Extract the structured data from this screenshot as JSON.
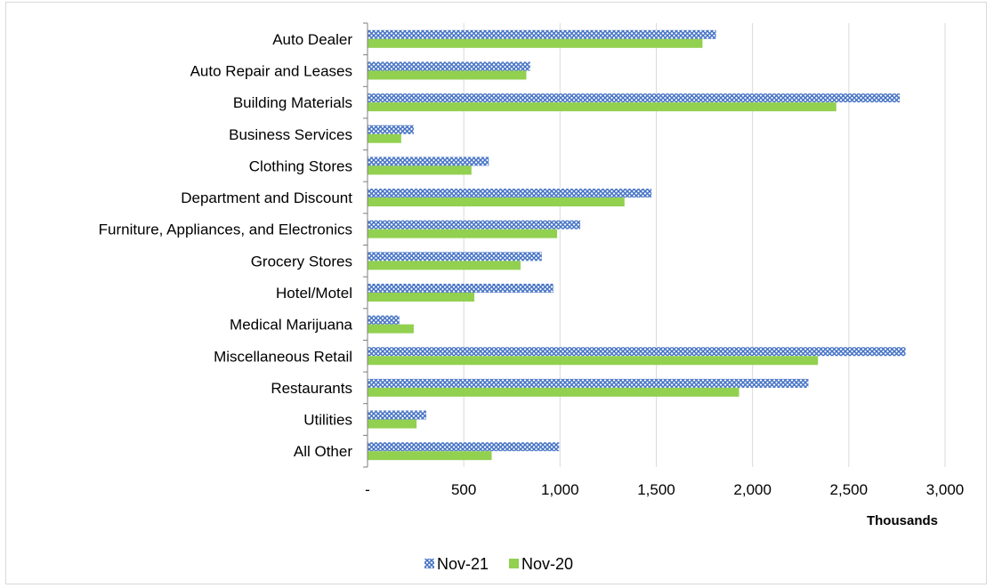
{
  "chart_data": {
    "type": "bar",
    "orientation": "horizontal",
    "categories": [
      "Auto Dealer",
      "Auto Repair and Leases",
      "Building Materials",
      "Business Services",
      "Clothing Stores",
      "Department and Discount",
      "Furniture, Appliances, and Electronics",
      "Grocery Stores",
      "Hotel/Motel",
      "Medical Marijuana",
      "Miscellaneous Retail",
      "Restaurants",
      "Utilities",
      "All Other"
    ],
    "series": [
      {
        "name": "Nov-21",
        "color": "#4472c4",
        "pattern": "crosshatch",
        "values": [
          1810,
          845,
          2765,
          240,
          630,
          1475,
          1105,
          905,
          965,
          165,
          2795,
          2290,
          305,
          995
        ]
      },
      {
        "name": "Nov-20",
        "color": "#92d050",
        "pattern": "solid",
        "values": [
          1740,
          825,
          2435,
          175,
          540,
          1335,
          985,
          795,
          555,
          240,
          2340,
          1930,
          255,
          645
        ]
      }
    ],
    "xlim": [
      0,
      3000
    ],
    "xticks": [
      0,
      500,
      1000,
      1500,
      2000,
      2500,
      3000
    ],
    "xtick_labels": [
      "-",
      "500",
      "1,000",
      "1,500",
      "2,000",
      "2,500",
      "3,000"
    ],
    "xlabel": "Thousands",
    "grid": "vertical",
    "legend_position": "bottom"
  }
}
